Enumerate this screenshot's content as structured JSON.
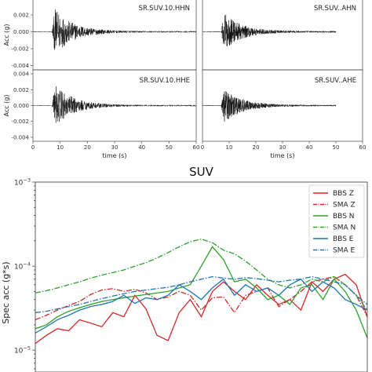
{
  "chart_data": [
    {
      "type": "line",
      "panel": "waveform-grid",
      "panels": [
        {
          "label": "SR.SUV.10.HHN",
          "x_max": 60,
          "duration": 60
        },
        {
          "label": "SR.SUV..AHN",
          "x_max": 60,
          "duration": 50
        },
        {
          "label": "SR.SUV.10.HHE",
          "x_max": 60,
          "duration": 60
        },
        {
          "label": "SR.SUV..AHE",
          "x_max": 60,
          "duration": 50
        }
      ],
      "ylabel": "Acc (g)",
      "xlabel": "time (s)",
      "yticks": [
        "0.004",
        "0.002",
        "0.000",
        "-0.002",
        "-0.004"
      ],
      "xticks": [
        "0",
        "10",
        "20",
        "30",
        "40",
        "50",
        "60"
      ],
      "ylim": [
        -0.0045,
        0.0045
      ],
      "onset_s": 7
    },
    {
      "type": "line",
      "panel": "spectra",
      "title": "SUV",
      "ylabel": "Spec acc (g*s)",
      "yscale": "log",
      "yticks": [
        {
          "base": "10",
          "exp": "−3",
          "value": 0.001
        },
        {
          "base": "10",
          "exp": "−4",
          "value": 0.0001
        },
        {
          "base": "10",
          "exp": "−5",
          "value": 1e-05
        }
      ],
      "ylim": [
        5.5e-06,
        0.001
      ],
      "xlim": [
        0,
        100
      ],
      "legend_position": "top-right",
      "series": [
        {
          "name": "BBS Z",
          "color": "#d62728",
          "dash": "solid",
          "values": [
            1.2e-05,
            1.5e-05,
            1.8e-05,
            1.7e-05,
            2.3e-05,
            2.1e-05,
            1.9e-05,
            2.8e-05,
            2.5e-05,
            4.5e-05,
            3.1e-05,
            1.5e-05,
            1.3e-05,
            2.8e-05,
            4e-05,
            2.5e-05,
            5e-05,
            6.5e-05,
            5e-05,
            4e-05,
            6e-05,
            4.5e-05,
            3.5e-05,
            4e-05,
            3e-05,
            6.5e-05,
            5e-05,
            7e-05,
            8e-05,
            6e-05,
            2.5e-05
          ]
        },
        {
          "name": "SMA Z",
          "color": "#d62728",
          "dash": "dashdot",
          "values": [
            2.3e-05,
            2.6e-05,
            3e-05,
            3.4e-05,
            3.8e-05,
            4.6e-05,
            5.2e-05,
            5.4e-05,
            5e-05,
            5.3e-05,
            4.8e-05,
            4e-05,
            4.3e-05,
            5e-05,
            4.5e-05,
            3e-05,
            4.2e-05,
            4.3e-05,
            2.8e-05,
            4.5e-05,
            5e-05,
            5.5e-05,
            3.3e-05,
            4e-05,
            5e-05,
            6.5e-05,
            7e-05,
            7.5e-05,
            6e-05,
            4.5e-05,
            2.5e-05
          ]
        },
        {
          "name": "BBS N",
          "color": "#2ca02c",
          "dash": "solid",
          "values": [
            1.8e-05,
            2e-05,
            2.5e-05,
            2.9e-05,
            3.2e-05,
            3.5e-05,
            3.8e-05,
            4e-05,
            4.2e-05,
            4.4e-05,
            4.6e-05,
            4.8e-05,
            5e-05,
            5.5e-05,
            6e-05,
            0.0001,
            0.00017,
            0.00012,
            6.5e-05,
            7e-05,
            5.5e-05,
            4e-05,
            4.5e-05,
            3.5e-05,
            5.5e-05,
            6e-05,
            4e-05,
            7e-05,
            5e-05,
            3e-05,
            1.4e-05
          ]
        },
        {
          "name": "SMA N",
          "color": "#2ca02c",
          "dash": "dashdot",
          "values": [
            4.8e-05,
            5.1e-05,
            5.5e-05,
            6e-05,
            6.5e-05,
            7.2e-05,
            7.8e-05,
            8.4e-05,
            9e-05,
            0.0001,
            0.00011,
            0.000125,
            0.000145,
            0.00017,
            0.000195,
            0.00021,
            0.00019,
            0.000155,
            0.00014,
            0.000115,
            9e-05,
            7e-05,
            6e-05,
            5.5e-05,
            6e-05,
            7e-05,
            6.5e-05,
            7.5e-05,
            6e-05,
            4.5e-05,
            3e-05
          ]
        },
        {
          "name": "BBS E",
          "color": "#1f77b4",
          "dash": "solid",
          "values": [
            1.6e-05,
            1.9e-05,
            2.3e-05,
            2.6e-05,
            3e-05,
            3.3e-05,
            3.5e-05,
            3.8e-05,
            4.5e-05,
            3.6e-05,
            4.2e-05,
            4e-05,
            4.5e-05,
            6e-05,
            5e-05,
            4e-05,
            5.5e-05,
            7e-05,
            4.5e-05,
            6e-05,
            5e-05,
            5.5e-05,
            4.5e-05,
            6e-05,
            7e-05,
            5e-05,
            6.5e-05,
            5.5e-05,
            4e-05,
            3.5e-05,
            3e-05
          ]
        },
        {
          "name": "SMA E",
          "color": "#1f77b4",
          "dash": "dashdot",
          "values": [
            2.8e-05,
            2.9e-05,
            3.1e-05,
            3.3e-05,
            3.5e-05,
            3.8e-05,
            4.1e-05,
            4.4e-05,
            4.7e-05,
            5e-05,
            5.2e-05,
            5.4e-05,
            5.6e-05,
            6e-05,
            6.5e-05,
            7e-05,
            7.5e-05,
            7.2e-05,
            7e-05,
            7.3e-05,
            7.1e-05,
            6.8e-05,
            6.5e-05,
            6.8e-05,
            7e-05,
            7.5e-05,
            7e-05,
            6.5e-05,
            6e-05,
            4.5e-05,
            3.5e-05
          ]
        }
      ]
    }
  ]
}
